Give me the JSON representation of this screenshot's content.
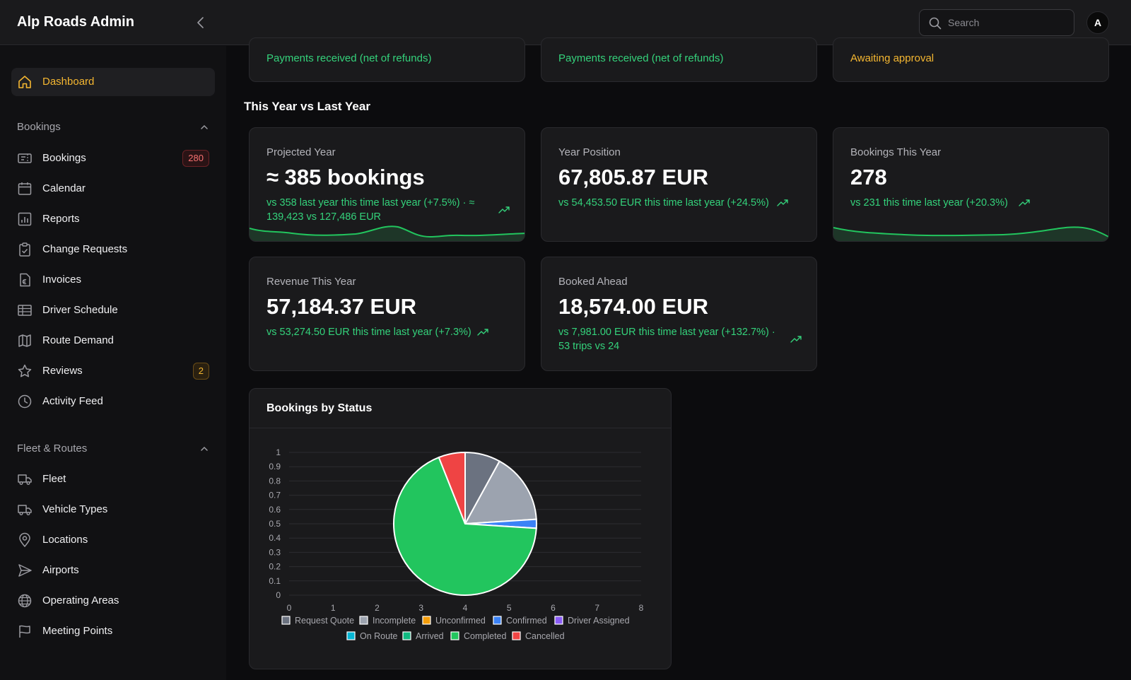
{
  "app": {
    "title": "Alp Roads Admin"
  },
  "search": {
    "placeholder": "Search"
  },
  "user": {
    "avatar_initial": "A"
  },
  "sidebar": {
    "dashboard": {
      "label": "Dashboard",
      "icon": "home-icon"
    },
    "bookings_section": {
      "label": "Bookings",
      "expanded": true
    },
    "bookings_items": [
      {
        "label": "Bookings",
        "icon": "ticket-icon",
        "badge": "280"
      },
      {
        "label": "Calendar",
        "icon": "calendar-icon"
      },
      {
        "label": "Reports",
        "icon": "bar-chart-icon"
      },
      {
        "label": "Change Requests",
        "icon": "clipboard-check-icon"
      },
      {
        "label": "Invoices",
        "icon": "invoice-euro-icon"
      },
      {
        "label": "Driver Schedule",
        "icon": "table-icon"
      },
      {
        "label": "Route Demand",
        "icon": "map-icon"
      },
      {
        "label": "Reviews",
        "icon": "star-icon",
        "badge": "2"
      },
      {
        "label": "Activity Feed",
        "icon": "clock-icon"
      }
    ],
    "fleet_section": {
      "label": "Fleet & Routes",
      "expanded": true
    },
    "fleet_items": [
      {
        "label": "Fleet",
        "icon": "truck-icon"
      },
      {
        "label": "Vehicle Types",
        "icon": "truck-icon"
      },
      {
        "label": "Locations",
        "icon": "map-pin-icon"
      },
      {
        "label": "Airports",
        "icon": "send-icon"
      },
      {
        "label": "Operating Areas",
        "icon": "globe-icon"
      },
      {
        "label": "Meeting Points",
        "icon": "flag-icon"
      }
    ]
  },
  "top_cards": [
    {
      "note": "Payments received (net of refunds)",
      "tone": "green"
    },
    {
      "note": "Payments received (net of refunds)",
      "tone": "green"
    },
    {
      "note": "Awaiting approval",
      "tone": "amber"
    }
  ],
  "section": {
    "title": "This Year vs Last Year"
  },
  "stat_cards": {
    "projected_year": {
      "title": "Projected Year",
      "value": "≈ 385 bookings",
      "sub_line1": "vs 358 last year this time last year (+7.5%) · ≈",
      "sub_line2": "139,423 vs 127,486 EUR"
    },
    "year_position": {
      "title": "Year Position",
      "value": "67,805.87 EUR",
      "sub_line1": "vs 54,453.50 EUR this time last year (+24.5%)"
    },
    "bookings_this_year": {
      "title": "Bookings This Year",
      "value": "278",
      "sub_line1": "vs 231 this time last year (+20.3%)"
    },
    "revenue_this_year": {
      "title": "Revenue This Year",
      "value": "57,184.37 EUR",
      "sub_line1": "vs 53,274.50 EUR this time last year (+7.3%)"
    },
    "booked_ahead": {
      "title": "Booked Ahead",
      "value": "18,574.00 EUR",
      "sub_line1": "vs 7,981.00 EUR this time last year (+132.7%) ·",
      "sub_line2": "53 trips vs 24"
    }
  },
  "colors": {
    "accent": "#f5b731",
    "positive": "#34d27b",
    "danger": "#f87171"
  },
  "chart_data": {
    "type": "pie",
    "title": "Bookings by Status",
    "x_ticks": [
      "0",
      "1",
      "2",
      "3",
      "4",
      "5",
      "6",
      "7",
      "8"
    ],
    "y_ticks": [
      "0",
      "0.1",
      "0.2",
      "0.3",
      "0.4",
      "0.5",
      "0.6",
      "0.7",
      "0.8",
      "0.9",
      "1"
    ],
    "grid": true,
    "legend_position": "bottom",
    "series": [
      {
        "name": "Request Quote",
        "value": 0.08,
        "color": "#6b7280"
      },
      {
        "name": "Incomplete",
        "value": 0.16,
        "color": "#9ca3af"
      },
      {
        "name": "Unconfirmed",
        "value": 0,
        "color": "#f59e0b"
      },
      {
        "name": "Confirmed",
        "value": 0.02,
        "color": "#3b82f6"
      },
      {
        "name": "Driver Assigned",
        "value": 0,
        "color": "#8b5cf6"
      },
      {
        "name": "On Route",
        "value": 0,
        "color": "#06b6d4"
      },
      {
        "name": "Arrived",
        "value": 0,
        "color": "#10b981"
      },
      {
        "name": "Completed",
        "value": 0.68,
        "color": "#22c55e"
      },
      {
        "name": "Cancelled",
        "value": 0.06,
        "color": "#ef4444"
      }
    ]
  }
}
